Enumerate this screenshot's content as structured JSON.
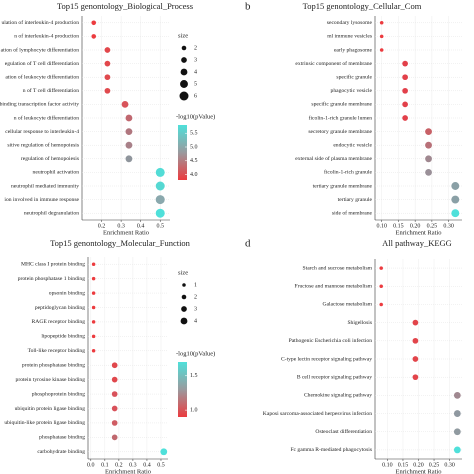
{
  "chart_data": [
    {
      "type": "scatter",
      "title": "Top15 genontology_Biological_Process",
      "categories": [
        "ulation of interleukin-4 production",
        "n of interleukin-4 production",
        "ation of lymphocyte differentiation",
        "egulation of T cell differentiation",
        "ation of leukocyte differentiation",
        "n of T cell differentiation",
        "regulation of DNA-binding transcription factor activity",
        "n of leukocyte differentiation",
        "cellular response to interleukin-4",
        "sitive regulation of hemopoiesis",
        "regulation of hemopoiesis",
        "neutrophil activation",
        "neutrophil mediated immunity",
        "ion involved in immune response",
        "neutrophil degranulation"
      ],
      "values": [
        0.16,
        0.16,
        0.23,
        0.23,
        0.23,
        0.23,
        0.32,
        0.34,
        0.34,
        0.34,
        0.34,
        0.5,
        0.5,
        0.5,
        0.5
      ],
      "sizes": [
        2,
        2,
        3,
        3,
        3,
        3,
        4,
        4,
        4,
        4,
        4,
        6,
        6,
        6,
        6
      ],
      "colors": [
        "#ec3b3f",
        "#ec3b3f",
        "#e2474b",
        "#e2474b",
        "#e04a4e",
        "#e04a4e",
        "#d8535a",
        "#c0676f",
        "#b0767e",
        "#a88088",
        "#8f959c",
        "#52dcd6",
        "#55d8d2",
        "#8aa8ad",
        "#4fe0da"
      ],
      "xlim": [
        0.1,
        0.55
      ],
      "xticks": [
        0.2,
        0.3,
        0.4,
        0.5
      ],
      "xlabel": "Enrichment Ratio",
      "size_title": "size",
      "size_values": [
        2,
        3,
        4,
        5,
        6
      ],
      "color_title": "-log10(pValue)",
      "clim": [
        3.8,
        5.8
      ],
      "color_ticks": [
        5.5,
        {
          "value": 5.0,
          "label": "5.0"
        },
        4.5,
        {
          "value": 4.0,
          "label": "4.0"
        }
      ]
    },
    {
      "type": "scatter",
      "letter": "b",
      "title": "Top15 genontology_Cellular_Com",
      "categories": [
        "secondary lysosome",
        "ml immune vesicles",
        "early phagosome",
        "extrinsic component of membrane",
        "specific granule",
        "phagocytic vesicle",
        "specific granule membrane",
        "ficolin-1-rich granule lumen",
        "secretory granule membrane",
        "endocytic vesicle",
        "external side of plasma membrane",
        "ficolin-1-rich granule",
        "tertiary granule membrane",
        "tertiary granule",
        "side of membrane"
      ],
      "values": [
        0.1,
        0.1,
        0.1,
        0.17,
        0.17,
        0.17,
        0.17,
        0.17,
        0.24,
        0.24,
        0.24,
        0.24,
        0.32,
        0.32,
        0.32
      ],
      "sizes": [
        1,
        1,
        1,
        3,
        3,
        3,
        3,
        3,
        4,
        4,
        4,
        4,
        5,
        5,
        5
      ],
      "colors": [
        "#ec3b3f",
        "#ec3b3f",
        "#ec3b3f",
        "#e2404a",
        "#e2404a",
        "#e2404a",
        "#e2404a",
        "#e2404a",
        "#c86066",
        "#b87078",
        "#a08890",
        "#9a9098",
        "#8aa0a6",
        "#8aa0a6",
        "#4fe0da"
      ],
      "xlim": [
        0.08,
        0.34
      ],
      "xticks": [
        {
          "value": 0.1,
          "label": "0.10"
        },
        0.15,
        {
          "value": 0.2,
          "label": "0.20"
        },
        0.25,
        {
          "value": 0.3,
          "label": "0.30"
        }
      ],
      "xlabel": "Enrichment Ratio"
    },
    {
      "type": "scatter",
      "title": "Top15 genontology_Molecular_Function",
      "categories": [
        "MHC class I protein binding",
        "protein phosphatase 1 binding",
        "opsonin binding",
        "peptidoglycan binding",
        "RAGE receptor binding",
        "lipopeptide binding",
        "Toll-like receptor binding",
        "protein phosphatase binding",
        "protein tyrosine kinase binding",
        "phosphoprotein binding",
        "ubiquitin protein ligase binding",
        "ubiquitin-like protein ligase binding",
        "phosphatase binding",
        "carbohydrate binding"
      ],
      "values": [
        0.02,
        0.02,
        0.02,
        0.02,
        0.02,
        0.02,
        0.02,
        0.17,
        0.17,
        0.17,
        0.17,
        0.17,
        0.17,
        0.52
      ],
      "sizes": [
        1,
        1,
        1,
        1,
        1,
        1,
        1,
        3,
        3,
        3,
        3,
        3,
        3,
        4
      ],
      "colors": [
        "#ec3b3f",
        "#ec3b3f",
        "#ec3b3f",
        "#ec3b3f",
        "#ec3b3f",
        "#ec3b3f",
        "#ec3b3f",
        "#e0474c",
        "#e0474c",
        "#d8515a",
        "#d8515a",
        "#cf5c63",
        "#c0686e",
        "#4fe0da"
      ],
      "xlim": [
        -0.02,
        0.55
      ],
      "xticks": [
        {
          "value": 0,
          "label": "0.0"
        },
        0.1,
        0.2,
        0.3,
        0.4,
        0.5
      ],
      "xlabel": "Enrichment Ratio",
      "size_title": "size",
      "size_values": [
        1,
        2,
        3,
        4
      ],
      "color_title": "-log10(pValue)",
      "clim": [
        0.9,
        1.7
      ],
      "color_ticks": [
        1.5,
        {
          "value": 1.0,
          "label": "1.0"
        }
      ]
    },
    {
      "type": "scatter",
      "letter": "d",
      "title": "All pathway_KEGG",
      "categories": [
        "Starch and sucrose metabolism",
        "Fructose and mannose metabolism",
        "Galactose metabolism",
        "Shigellosis",
        "Pathogenic Escherichia coli infection",
        "C-type lectin receptor signaling pathway",
        "B cell receptor signaling pathway",
        "Chemokine signaling pathway",
        "Kaposi sarcoma-associated herpesvirus infection",
        "Osteoclast differentiation",
        "Fc gamma R-mediated phagocytosis"
      ],
      "values": [
        0.08,
        0.08,
        0.08,
        0.19,
        0.19,
        0.19,
        0.19,
        0.325,
        0.325,
        0.325,
        0.325
      ],
      "sizes": [
        1,
        1,
        1,
        3,
        3,
        3,
        3,
        4,
        4,
        4,
        4
      ],
      "colors": [
        "#ec3b3f",
        "#ec3b3f",
        "#ec3b3f",
        "#e2444a",
        "#e2444a",
        "#e2444a",
        "#e2444a",
        "#a08890",
        "#8f98a0",
        "#909aa0",
        "#4fe0da"
      ],
      "xlim": [
        0.06,
        0.34
      ],
      "xticks": [
        {
          "value": 0.1,
          "label": "0.10"
        },
        0.15,
        {
          "value": 0.2,
          "label": "0.20"
        },
        0.25,
        {
          "value": 0.3,
          "label": "0.30"
        }
      ],
      "xlabel": "Enrichment Ratio"
    }
  ]
}
